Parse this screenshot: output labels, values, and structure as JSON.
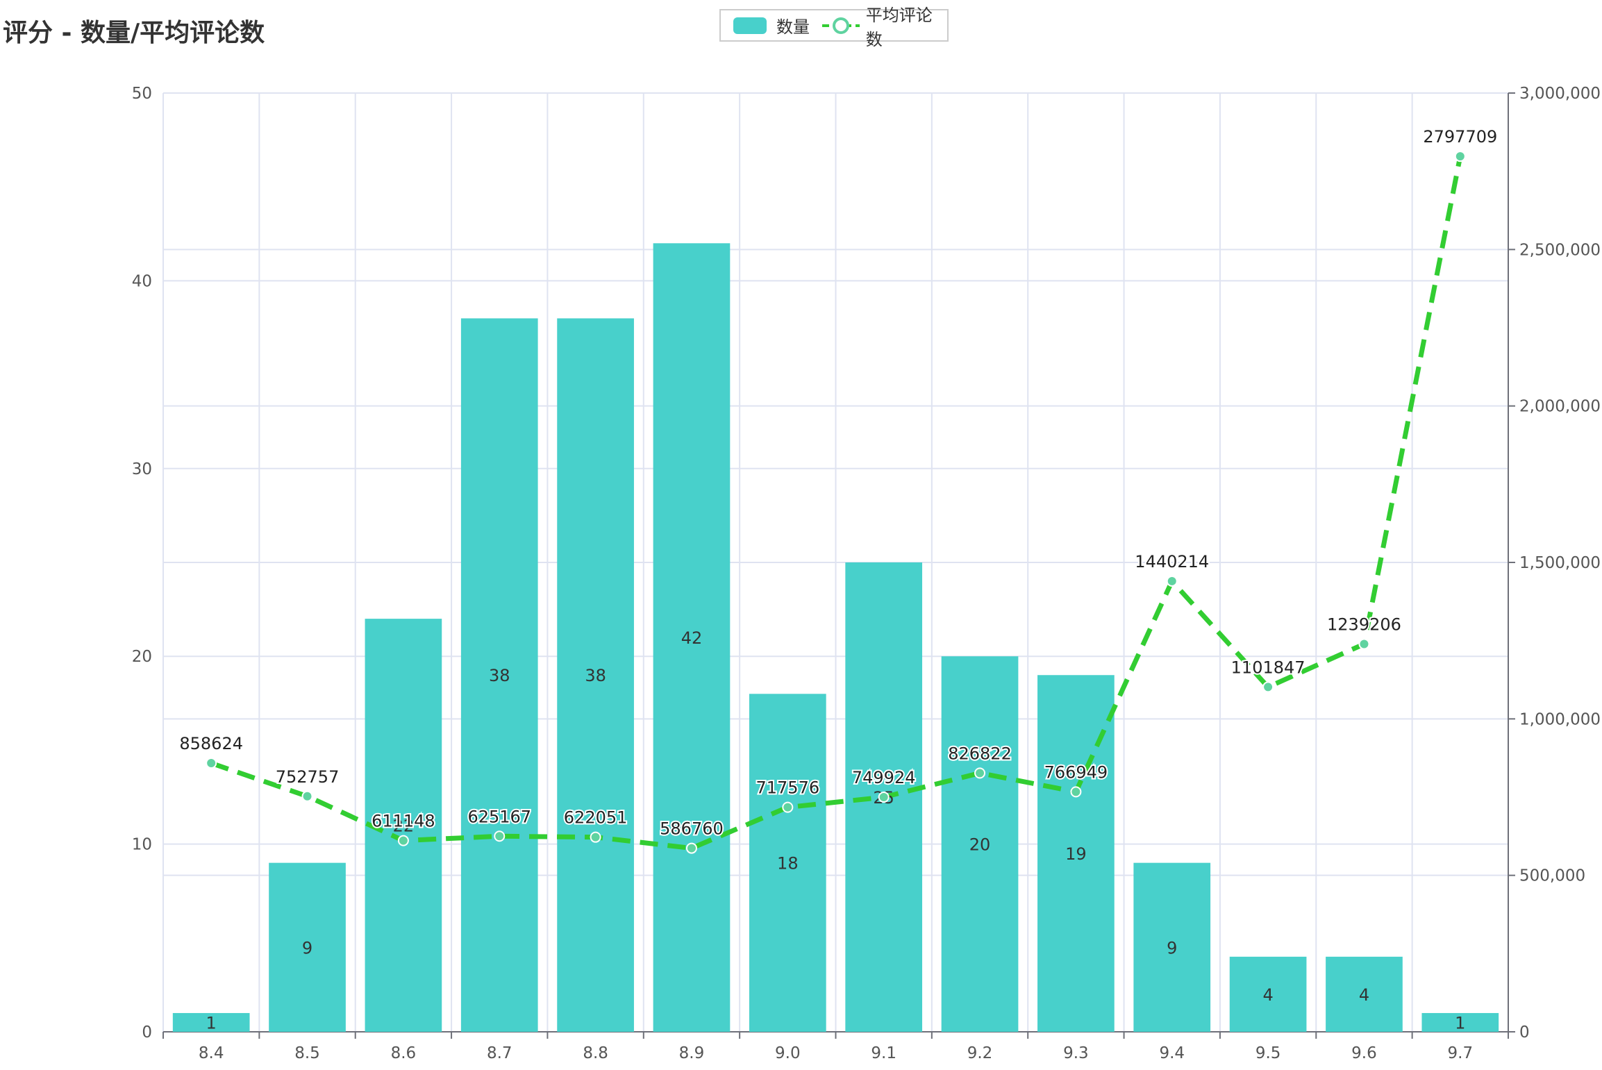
{
  "colors": {
    "bar": "#48d0cb",
    "line": "#32cd32",
    "marker": "#5fd3a0",
    "grid": "#dfe3f1",
    "axis": "#6e7079"
  },
  "chart_data": {
    "type": "bar",
    "title": "评分 - 数量/平均评论数",
    "legend_position": "top-center",
    "grid": true,
    "categories": [
      "8.4",
      "8.5",
      "8.6",
      "8.7",
      "8.8",
      "8.9",
      "9.0",
      "9.1",
      "9.2",
      "9.3",
      "9.4",
      "9.5",
      "9.6",
      "9.7"
    ],
    "series": [
      {
        "name": "数量",
        "type": "bar",
        "axis": "left",
        "values": [
          1,
          9,
          22,
          38,
          38,
          42,
          18,
          25,
          20,
          19,
          9,
          4,
          4,
          1
        ]
      },
      {
        "name": "平均评论数",
        "type": "line",
        "axis": "right",
        "line_style": "dashed",
        "values": [
          858624,
          752757,
          611148,
          625167,
          622051,
          586760,
          717576,
          749924,
          826822,
          766949,
          1440214,
          1101847,
          1239206,
          2797709
        ]
      }
    ],
    "y_left": {
      "ylim": [
        0,
        50
      ],
      "ticks": [
        "0",
        "10",
        "20",
        "30",
        "40",
        "50"
      ]
    },
    "y_right": {
      "ylim": [
        0,
        3000000
      ],
      "ticks": [
        "0",
        "500,000",
        "1,000,000",
        "1,500,000",
        "2,000,000",
        "2,500,000",
        "3,000,000"
      ]
    },
    "xlabel": "",
    "ylabel": ""
  }
}
